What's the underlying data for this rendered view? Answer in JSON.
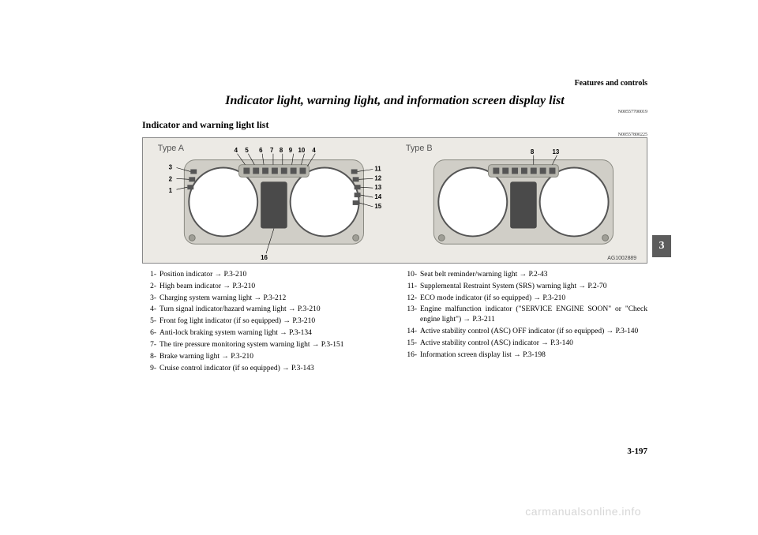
{
  "header": {
    "section": "Features and controls"
  },
  "title": "Indicator light, warning light, and information screen display list",
  "code1": "N00557700019",
  "subheading": "Indicator and warning light list",
  "code2": "N00557800225",
  "diagram": {
    "bg": "#eceae5",
    "typeA_label": "Type A",
    "typeB_label": "Type B",
    "figure_code": "AG1002889",
    "cluster_fill": "#d0cec7",
    "cluster_stroke": "#8a8a82",
    "dial_fill": "#ffffff",
    "dial_stroke": "#555555",
    "icon_panel_fill": "#b8b7af",
    "screen_fill": "#4a4a4a",
    "screw_fill": "#9f9e96",
    "callout_font": "8",
    "typeA": {
      "top_numbers": [
        "4",
        "5",
        "6",
        "7",
        "8",
        "9",
        "10",
        "4"
      ],
      "left_numbers": [
        "3",
        "2",
        "1"
      ],
      "right_numbers": [
        "11",
        "12",
        "13",
        "14",
        "15"
      ],
      "bottom_number": "16"
    },
    "typeB": {
      "top_numbers": [
        "8",
        "13"
      ]
    }
  },
  "list_left": [
    {
      "n": "1-",
      "t": "Position indicator → P.3-210"
    },
    {
      "n": "2-",
      "t": "High beam indicator → P.3-210"
    },
    {
      "n": "3-",
      "t": "Charging system warning light → P.3-212"
    },
    {
      "n": "4-",
      "t": "Turn signal indicator/hazard warning light → P.3-210"
    },
    {
      "n": "5-",
      "t": "Front fog light indicator (if so equipped) → P.3-210"
    },
    {
      "n": "6-",
      "t": "Anti-lock braking system warning light → P.3-134"
    },
    {
      "n": "7-",
      "t": "The tire pressure monitoring system warning light → P.3-151"
    },
    {
      "n": "8-",
      "t": "Brake warning light → P.3-210"
    },
    {
      "n": "9-",
      "t": "Cruise control indicator (if so equipped) → P.3-143"
    }
  ],
  "list_right": [
    {
      "n": "10-",
      "t": "Seat belt reminder/warning light → P.2-43"
    },
    {
      "n": "11-",
      "t": "Supplemental Restraint System (SRS) warning light → P.2-70"
    },
    {
      "n": "12-",
      "t": "ECO mode indicator (if so equipped) → P.3-210"
    },
    {
      "n": "13-",
      "t": "Engine malfunction indicator (\"SERVICE ENGINE SOON\" or \"Check engine light\") → P.3-211"
    },
    {
      "n": "14-",
      "t": "Active stability control (ASC) OFF indicator (if so equipped) → P.3-140"
    },
    {
      "n": "15-",
      "t": "Active stability control (ASC) indicator → P.3-140"
    },
    {
      "n": "16-",
      "t": "Information screen display list → P.3-198"
    }
  ],
  "page_number": "3-197",
  "tab": "3",
  "watermark": "carmanualsonline.info"
}
